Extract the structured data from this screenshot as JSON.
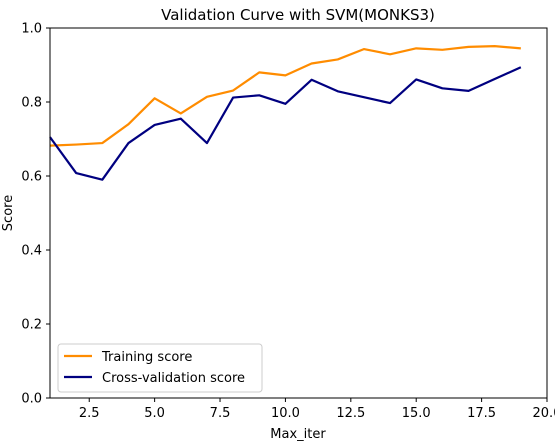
{
  "chart_data": {
    "type": "line",
    "title": "Validation Curve with SVM(MONKS3)",
    "xlabel": "Max_iter",
    "ylabel": "Score",
    "xlim": [
      1,
      20
    ],
    "ylim": [
      0,
      1
    ],
    "xticks": [
      "2.5",
      "5.0",
      "7.5",
      "10.0",
      "12.5",
      "15.0",
      "17.5",
      "20.0"
    ],
    "xtick_values": [
      2.5,
      5,
      7.5,
      10,
      12.5,
      15,
      17.5,
      20
    ],
    "yticks": [
      "0.0",
      "0.2",
      "0.4",
      "0.6",
      "0.8",
      "1.0"
    ],
    "ytick_values": [
      0,
      0.2,
      0.4,
      0.6,
      0.8,
      1.0
    ],
    "grid": false,
    "legend_position": "lower-left",
    "x": [
      1,
      2,
      3,
      4,
      5,
      6,
      7,
      8,
      9,
      10,
      11,
      12,
      13,
      14,
      15,
      16,
      17,
      18,
      19
    ],
    "series": [
      {
        "name": "Training score",
        "color": "#ff8c00",
        "values": [
          0.682,
          0.685,
          0.689,
          0.74,
          0.81,
          0.769,
          0.814,
          0.831,
          0.88,
          0.872,
          0.904,
          0.915,
          0.943,
          0.929,
          0.945,
          0.941,
          0.949,
          0.951,
          0.945
        ]
      },
      {
        "name": "Cross-validation score",
        "color": "#000080",
        "values": [
          0.705,
          0.608,
          0.59,
          0.689,
          0.738,
          0.755,
          0.689,
          0.812,
          0.818,
          0.795,
          0.86,
          0.829,
          0.813,
          0.797,
          0.861,
          0.837,
          0.83,
          0.862,
          0.894
        ]
      }
    ]
  }
}
